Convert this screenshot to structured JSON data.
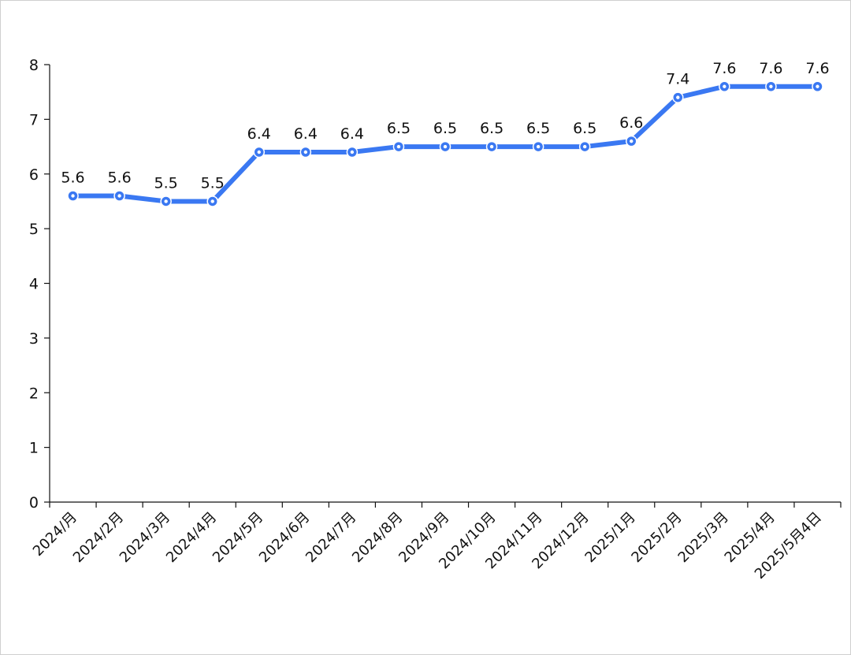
{
  "chart_data": {
    "type": "line",
    "title": "",
    "xlabel": "",
    "ylabel": "",
    "ylim": [
      0,
      8
    ],
    "yticks": [
      0,
      1,
      2,
      3,
      4,
      5,
      6,
      7,
      8
    ],
    "grid": false,
    "legend": "none",
    "categories": [
      "2024/月",
      "2024/2月",
      "2024/3月",
      "2024/4月",
      "2024/5月",
      "2024/6月",
      "2024/7月",
      "2024/8月",
      "2024/9月",
      "2024/10月",
      "2024/11月",
      "2024/12月",
      "2025/1月",
      "2025/2月",
      "2025/3月",
      "2025/4月",
      "2025/5月4日"
    ],
    "series": [
      {
        "values": [
          5.6,
          5.6,
          5.5,
          5.5,
          6.4,
          6.4,
          6.4,
          6.5,
          6.5,
          6.5,
          6.5,
          6.5,
          6.6,
          7.4,
          7.6,
          7.6,
          7.6
        ],
        "color": "#3a78f2",
        "data_labels": true
      }
    ]
  }
}
